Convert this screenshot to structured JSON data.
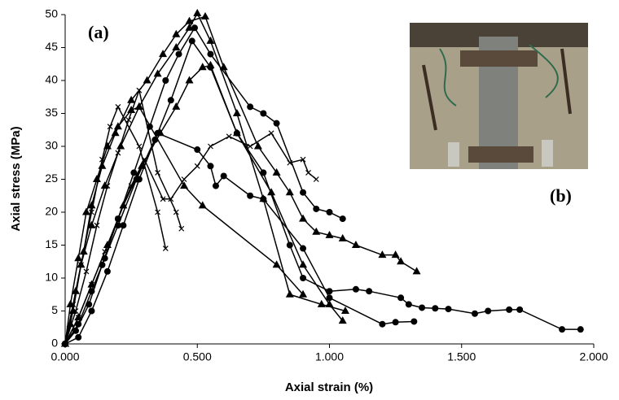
{
  "chart_data": {
    "type": "line",
    "xlabel": "Axial strain (%)",
    "ylabel": "Axial stress (MPa)",
    "annotations": [
      "(a)",
      "(b)"
    ],
    "xlim": [
      0,
      2
    ],
    "ylim": [
      0,
      50
    ],
    "xticks": [
      {
        "value": 0,
        "label": "0.000"
      },
      {
        "value": 0.5,
        "label": "0.500"
      },
      {
        "value": 1,
        "label": "1.000"
      },
      {
        "value": 1.5,
        "label": "1.500"
      },
      {
        "value": 2,
        "label": "2.000"
      }
    ],
    "yticks": [
      0,
      5,
      10,
      15,
      20,
      25,
      30,
      35,
      40,
      45,
      50
    ],
    "series": [
      {
        "marker": "triangle",
        "color": "#000000",
        "x": [
          0,
          0.02,
          0.04,
          0.07,
          0.1,
          0.14,
          0.19,
          0.25,
          0.31,
          0.37,
          0.42,
          0.47,
          0.53,
          0.6,
          0.73,
          0.8,
          0.85,
          0.9,
          0.95,
          1.0,
          1.05,
          1.1,
          1.2,
          1.25,
          1.27,
          1.33
        ],
        "values": [
          0,
          3,
          8,
          14,
          21,
          27,
          32,
          37,
          40,
          44,
          47,
          49,
          49.7,
          42,
          30,
          26,
          23,
          19,
          17,
          16.5,
          16,
          15,
          13.5,
          13.5,
          12.5,
          11
        ]
      },
      {
        "marker": "triangle",
        "color": "#000000",
        "x": [
          0,
          0.03,
          0.06,
          0.1,
          0.15,
          0.21,
          0.28,
          0.35,
          0.42,
          0.47,
          0.5,
          0.55,
          0.65,
          0.75,
          0.85,
          0.97,
          1.06
        ],
        "values": [
          0,
          5,
          12,
          18,
          24,
          30,
          36,
          41,
          45,
          48,
          50.2,
          46,
          35,
          22,
          7.5,
          6,
          5
        ]
      },
      {
        "marker": "triangle",
        "color": "#000000",
        "x": [
          0,
          0.05,
          0.1,
          0.16,
          0.22,
          0.29,
          0.36,
          0.42,
          0.47,
          0.52,
          0.55,
          0.65,
          0.78,
          0.9,
          1.0,
          1.05
        ],
        "values": [
          0,
          4,
          9,
          15,
          21,
          27,
          32,
          36,
          40,
          42,
          42.3,
          32,
          23,
          12,
          6,
          3.5
        ]
      },
      {
        "marker": "triangle",
        "color": "#000000",
        "x": [
          0,
          0.02,
          0.05,
          0.08,
          0.12,
          0.16,
          0.2,
          0.25,
          0.28,
          0.45,
          0.52,
          0.8,
          0.9
        ],
        "values": [
          0,
          6,
          13,
          20,
          25,
          30,
          33,
          35.5,
          36,
          24,
          21,
          12,
          7.5
        ]
      },
      {
        "marker": "circle",
        "color": "#000000",
        "x": [
          0,
          0.04,
          0.09,
          0.14,
          0.2,
          0.26,
          0.32,
          0.38,
          0.43,
          0.49,
          0.55,
          0.7,
          0.75,
          0.8,
          0.9,
          0.95,
          1.0,
          1.05
        ],
        "values": [
          0,
          2,
          6,
          12,
          19,
          26,
          33,
          40,
          44,
          48,
          44,
          36,
          35,
          33.5,
          23,
          20.5,
          20,
          19
        ]
      },
      {
        "marker": "circle",
        "color": "#000000",
        "x": [
          0,
          0.05,
          0.1,
          0.16,
          0.22,
          0.28,
          0.34,
          0.4,
          0.48,
          0.55,
          0.65,
          0.75,
          0.85,
          0.9,
          1.0,
          1.1,
          1.15,
          1.27,
          1.3,
          1.35,
          1.4,
          1.45,
          1.55,
          1.6,
          1.68,
          1.72,
          1.88,
          1.95
        ],
        "values": [
          0,
          1,
          5,
          11,
          18,
          25,
          31,
          37,
          46,
          42,
          32,
          26,
          15,
          10,
          8,
          8.3,
          8,
          7,
          6,
          5.5,
          5.4,
          5.3,
          4.6,
          5,
          5.2,
          5.2,
          2.2,
          2.2
        ]
      },
      {
        "marker": "circle",
        "color": "#000000",
        "x": [
          0,
          0.05,
          0.1,
          0.15,
          0.2,
          0.27,
          0.35,
          0.5,
          0.55,
          0.57,
          0.6,
          0.7,
          0.75,
          0.9,
          1.0,
          1.2,
          1.25,
          1.32
        ],
        "values": [
          0,
          3,
          8,
          13,
          18,
          25,
          32,
          29.5,
          27,
          24,
          25.5,
          22.5,
          22,
          14.5,
          7,
          3,
          3.3,
          3.4
        ]
      },
      {
        "marker": "cross",
        "color": "#000000",
        "x": [
          0,
          0.03,
          0.06,
          0.1,
          0.14,
          0.17,
          0.2,
          0.28,
          0.35,
          0.38
        ],
        "values": [
          0,
          6,
          12,
          20,
          28,
          33,
          36,
          30,
          20,
          14.5
        ]
      },
      {
        "marker": "cross",
        "color": "#000000",
        "x": [
          0,
          0.04,
          0.08,
          0.12,
          0.16,
          0.2,
          0.24,
          0.28,
          0.35,
          0.42,
          0.44
        ],
        "values": [
          0,
          5,
          11,
          18,
          24,
          29,
          34,
          38.5,
          26,
          20,
          17.5
        ]
      },
      {
        "marker": "cross",
        "color": "#000000",
        "x": [
          0,
          0.05,
          0.1,
          0.15,
          0.2,
          0.25,
          0.3,
          0.37,
          0.4,
          0.45,
          0.5,
          0.55,
          0.62,
          0.7,
          0.78,
          0.85,
          0.9,
          0.92,
          0.95
        ],
        "values": [
          0,
          4,
          9,
          14,
          19,
          24,
          28,
          22,
          22,
          25,
          27,
          30,
          31.5,
          30,
          32,
          27.5,
          28,
          26,
          25
        ]
      }
    ]
  }
}
